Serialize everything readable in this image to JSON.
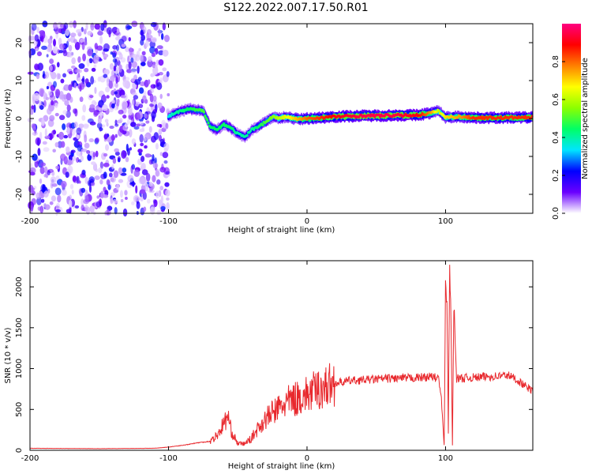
{
  "figure_title": "S122.2022.007.17.50.R01",
  "chart_data": [
    {
      "type": "heatmap",
      "xlabel": "Height of straight line (km)",
      "ylabel": "Frequency (Hz)",
      "xlim": [
        -200,
        163
      ],
      "ylim": [
        -25,
        25
      ],
      "xticks": [
        -200,
        -100,
        0,
        100
      ],
      "yticks": [
        -20,
        -10,
        0,
        10,
        20
      ],
      "colorbar": {
        "label": "Normalized spectral amplitude",
        "range": [
          0,
          1
        ],
        "ticks": [
          "0.0",
          "0.2",
          "0.4",
          "0.6",
          "0.8"
        ],
        "colors": [
          "#ffffff",
          "#6a00ff",
          "#0000ff",
          "#00e5ff",
          "#00ff66",
          "#8cff00",
          "#ffff00",
          "#ff8000",
          "#ff0000",
          "#ff0080"
        ]
      },
      "ridge": {
        "x": [
          -100,
          -95,
          -85,
          -75,
          -70,
          -65,
          -60,
          -55,
          -50,
          -45,
          -40,
          -35,
          -30,
          -25,
          -20,
          -15,
          -10,
          -5,
          0,
          10,
          20,
          40,
          60,
          80,
          90,
          95,
          100,
          110,
          120,
          140,
          163
        ],
        "y": [
          0.5,
          1.5,
          2.5,
          2.0,
          -2.0,
          -3.0,
          -1.5,
          -2.5,
          -4.0,
          -5.0,
          -3.0,
          -2.0,
          -1.0,
          0.5,
          0.0,
          0.5,
          0.0,
          -0.2,
          0.0,
          0.2,
          0.5,
          0.7,
          0.8,
          0.9,
          1.5,
          2.0,
          0.3,
          0.5,
          0.2,
          0.2,
          0.3
        ],
        "amplitude": [
          0.35,
          0.4,
          0.45,
          0.5,
          0.45,
          0.45,
          0.45,
          0.45,
          0.4,
          0.4,
          0.4,
          0.45,
          0.5,
          0.55,
          0.6,
          0.65,
          0.7,
          0.75,
          0.8,
          0.85,
          0.9,
          0.95,
          0.95,
          0.9,
          0.75,
          0.6,
          0.7,
          0.75,
          0.85,
          0.85,
          0.85
        ]
      },
      "noise_region": {
        "x": [
          -200,
          -100
        ],
        "ylim": [
          -25,
          25
        ]
      }
    },
    {
      "type": "line",
      "xlabel": "Height of straight line (km)",
      "ylabel": "SNR (10 * v/v)",
      "xlim": [
        -200,
        163
      ],
      "ylim": [
        0,
        2320
      ],
      "xticks": [
        -200,
        -100,
        0,
        100
      ],
      "yticks": [
        0,
        500,
        1000,
        1500,
        2000
      ],
      "color": "#e8282d",
      "x": [
        -200,
        -150,
        -110,
        -100,
        -90,
        -80,
        -70,
        -65,
        -60,
        -57,
        -55,
        -50,
        -45,
        -40,
        -35,
        -30,
        -25,
        -20,
        -15,
        -10,
        -5,
        0,
        5,
        10,
        20,
        30,
        40,
        50,
        60,
        70,
        80,
        90,
        95,
        97,
        99,
        100,
        101,
        102,
        103,
        104,
        105,
        106,
        108,
        110,
        120,
        130,
        140,
        145,
        150,
        155,
        163
      ],
      "y": [
        25,
        20,
        25,
        40,
        60,
        90,
        110,
        180,
        330,
        420,
        250,
        80,
        80,
        150,
        280,
        380,
        460,
        520,
        580,
        620,
        650,
        680,
        720,
        760,
        820,
        850,
        860,
        870,
        880,
        880,
        890,
        900,
        880,
        620,
        60,
        2020,
        1870,
        200,
        2320,
        1480,
        60,
        1800,
        880,
        880,
        890,
        900,
        910,
        920,
        880,
        820,
        720
      ]
    }
  ]
}
